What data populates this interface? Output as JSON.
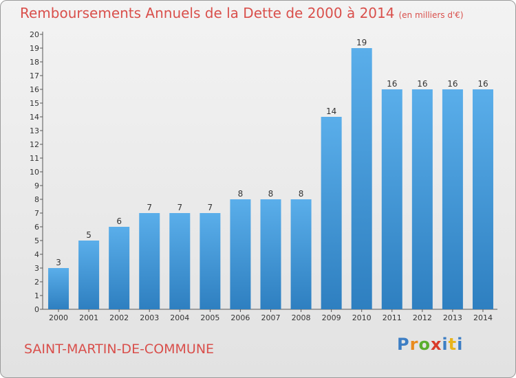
{
  "title": {
    "main": "Remboursements Annuels de la Dette de 2000 à 2014",
    "unit": "(en milliers d'€)"
  },
  "commune": "SAINT-MARTIN-DE-COMMUNE",
  "logo": "Proxiti",
  "colors": {
    "bar_top": "#5aaeea",
    "bar_bottom": "#2e7fc0",
    "title": "#d94f4b"
  },
  "chart_data": {
    "type": "bar",
    "title": "Remboursements Annuels de la Dette de 2000 à 2014",
    "xlabel": "",
    "ylabel": "",
    "ylim": [
      0,
      20
    ],
    "yticks": [
      0,
      1,
      2,
      3,
      4,
      5,
      6,
      7,
      8,
      9,
      10,
      11,
      12,
      13,
      14,
      15,
      16,
      17,
      18,
      19,
      20
    ],
    "categories": [
      "2000",
      "2001",
      "2002",
      "2003",
      "2004",
      "2005",
      "2006",
      "2007",
      "2008",
      "2009",
      "2010",
      "2011",
      "2012",
      "2013",
      "2014"
    ],
    "values": [
      3,
      5,
      6,
      7,
      7,
      7,
      8,
      8,
      8,
      14,
      19,
      16,
      16,
      16,
      16
    ],
    "grid": false,
    "legend": "none"
  }
}
